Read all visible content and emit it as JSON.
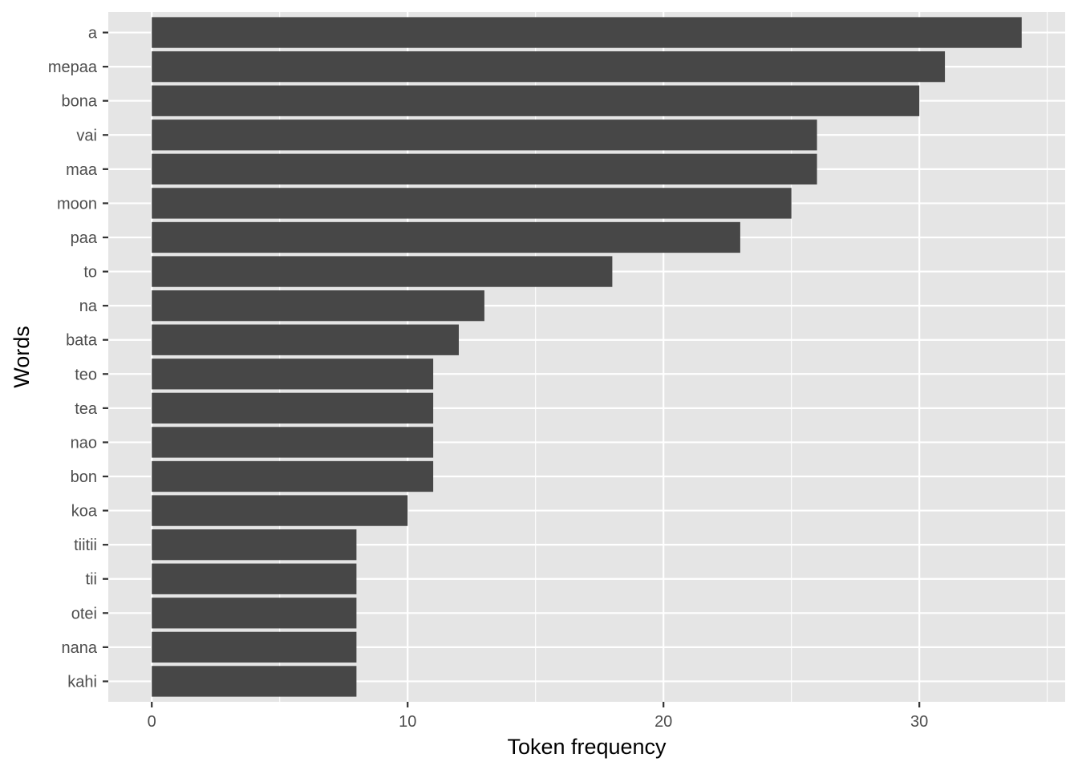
{
  "chart_data": {
    "type": "bar",
    "orientation": "horizontal",
    "title": "",
    "xlabel": "Token frequency",
    "ylabel": "Words",
    "categories": [
      "a",
      "mepaa",
      "bona",
      "vai",
      "maa",
      "moon",
      "paa",
      "to",
      "na",
      "bata",
      "teo",
      "tea",
      "nao",
      "bon",
      "koa",
      "tiitii",
      "tii",
      "otei",
      "nana",
      "kahi"
    ],
    "values": [
      34,
      31,
      30,
      26,
      26,
      25,
      23,
      18,
      13,
      12,
      11,
      11,
      11,
      11,
      10,
      8,
      8,
      8,
      8,
      8
    ],
    "xlim": [
      -1.7,
      35.7
    ],
    "x_ticks": [
      0,
      10,
      20,
      30
    ],
    "x_minor_ticks": [
      5,
      15,
      25,
      35
    ],
    "grid": true,
    "legend": "none",
    "colors": {
      "panel": "#e5e5e5",
      "grid": "#ffffff",
      "bar": "#474747",
      "tick_text": "#4d4d4d",
      "tick_mark": "#333333"
    }
  }
}
